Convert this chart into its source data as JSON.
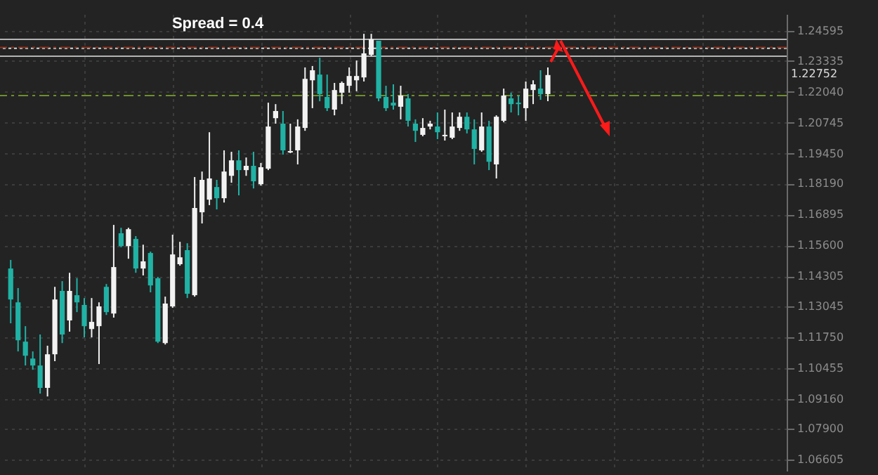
{
  "chart_data": {
    "type": "candlestick",
    "categories": [
      null,
      null,
      null,
      null,
      null,
      null,
      null,
      null,
      null,
      null,
      null,
      null,
      null,
      null,
      null,
      null,
      null,
      null,
      null,
      null,
      null,
      null,
      null,
      null,
      null,
      null,
      null,
      null,
      null,
      null,
      null,
      null,
      null,
      null,
      null,
      null,
      null,
      null,
      null,
      null,
      null,
      null,
      null,
      null,
      null,
      null,
      null,
      null,
      null,
      null,
      null,
      null,
      null,
      null,
      null,
      null,
      null,
      null,
      null,
      null,
      null,
      null,
      null,
      null,
      null,
      null,
      null,
      null,
      null,
      null,
      null,
      null,
      null,
      null,
      null,
      null,
      null,
      null,
      null,
      null,
      null,
      null,
      null,
      null,
      null,
      null,
      null,
      null,
      null,
      null,
      null,
      null,
      null,
      null,
      null,
      null,
      null,
      null,
      null,
      null,
      null,
      null,
      null,
      null,
      null
    ],
    "ohlc": [
      [
        1.1463,
        1.1499,
        1.1233,
        1.1333
      ],
      [
        1.1321,
        1.1381,
        1.1115,
        1.1162
      ],
      [
        1.1156,
        1.1221,
        1.1056,
        1.1097
      ],
      [
        1.1085,
        1.1115,
        1.1038,
        1.1056
      ],
      [
        1.1056,
        1.1186,
        1.0938,
        1.0962
      ],
      [
        1.0962,
        1.1139,
        1.0926,
        1.1103
      ],
      [
        1.1103,
        1.1386,
        1.1074,
        1.1333
      ],
      [
        1.1369,
        1.141,
        1.115,
        1.1186
      ],
      [
        1.1245,
        1.1445,
        1.1198,
        1.1369
      ],
      [
        1.1351,
        1.1422,
        1.128,
        1.1321
      ],
      [
        1.131,
        1.1339,
        1.1174,
        1.1221
      ],
      [
        1.1209,
        1.1339,
        1.1174,
        1.1239
      ],
      [
        1.1221,
        1.1321,
        1.1062,
        1.1304
      ],
      [
        1.1386,
        1.1398,
        1.1268,
        1.128
      ],
      [
        1.1274,
        1.1646,
        1.1257,
        1.1469
      ],
      [
        1.1611,
        1.1634,
        1.1552,
        1.1557
      ],
      [
        1.1557,
        1.1634,
        1.1504,
        1.1628
      ],
      [
        1.1587,
        1.1599,
        1.1445,
        1.1463
      ],
      [
        1.1463,
        1.1563,
        1.1434,
        1.1493
      ],
      [
        1.1528,
        1.1534,
        1.1363,
        1.1392
      ],
      [
        1.1422,
        1.1428,
        1.115,
        1.1156
      ],
      [
        1.115,
        1.1345,
        1.1144,
        1.1316
      ],
      [
        1.1304,
        1.1605,
        1.1298,
        1.1522
      ],
      [
        1.1481,
        1.1575,
        1.1475,
        1.151
      ],
      [
        1.154,
        1.1569,
        1.1339,
        1.1357
      ],
      [
        1.1351,
        1.1847,
        1.1345,
        1.1717
      ],
      [
        1.1699,
        1.187,
        1.1652,
        1.1835
      ],
      [
        1.1752,
        1.2035,
        1.1729,
        1.1841
      ],
      [
        1.1805,
        1.1835,
        1.1711,
        1.1758
      ],
      [
        1.1758,
        1.1959,
        1.174,
        1.187
      ],
      [
        1.1852,
        1.1953,
        1.1823,
        1.1917
      ],
      [
        1.1917,
        1.1959,
        1.177,
        1.1876
      ],
      [
        1.1876,
        1.1929,
        1.1852,
        1.1894
      ],
      [
        1.1894,
        1.1953,
        1.1799,
        1.1829
      ],
      [
        1.1817,
        1.1906,
        1.1811,
        1.1888
      ],
      [
        1.1882,
        1.2159,
        1.1876,
        1.2059
      ],
      [
        1.2094,
        1.2153,
        1.2071,
        1.2124
      ],
      [
        1.2071,
        1.2124,
        1.1941,
        1.1959
      ],
      [
        1.195,
        1.2071,
        1.1947,
        1.1956
      ],
      [
        1.1959,
        1.2089,
        1.19,
        1.2059
      ],
      [
        1.2053,
        1.2307,
        1.2041,
        1.2259
      ],
      [
        1.2253,
        1.2313,
        1.2136,
        1.2295
      ],
      [
        1.2277,
        1.2348,
        1.2165,
        1.2195
      ],
      [
        1.2183,
        1.2277,
        1.2124,
        1.2136
      ],
      [
        1.213,
        1.2242,
        1.2106,
        1.2212
      ],
      [
        1.2201,
        1.2248,
        1.2153,
        1.2242
      ],
      [
        1.223,
        1.2307,
        1.2201,
        1.2271
      ],
      [
        1.2253,
        1.2336,
        1.2207,
        1.2271
      ],
      [
        1.2265,
        1.2448,
        1.2248,
        1.2366
      ],
      [
        1.236,
        1.2448,
        1.2354,
        1.2425
      ],
      [
        1.2419,
        1.2419,
        1.2165,
        1.2177
      ],
      [
        1.2183,
        1.223,
        1.2124,
        1.2136
      ],
      [
        1.2159,
        1.2236,
        1.213,
        1.2147
      ],
      [
        1.2142,
        1.223,
        1.2089,
        1.2189
      ],
      [
        1.2177,
        1.2195,
        1.2059,
        1.2083
      ],
      [
        1.2071,
        1.2089,
        1.1994,
        1.2041
      ],
      [
        1.2024,
        1.2094,
        1.2018,
        1.2053
      ],
      [
        1.2059,
        1.2083,
        1.2047,
        1.2071
      ],
      [
        1.2059,
        1.2118,
        1.2006,
        1.2035
      ],
      [
        1.2018,
        1.213,
        1.2,
        1.2024
      ],
      [
        1.2012,
        1.2118,
        1.2006,
        1.2059
      ],
      [
        1.2053,
        1.2118,
        1.2041,
        1.21
      ],
      [
        1.21,
        1.2118,
        1.203,
        1.2047
      ],
      [
        1.2047,
        1.2089,
        1.19,
        1.1965
      ],
      [
        1.1959,
        1.2118,
        1.1953,
        1.2059
      ],
      [
        1.2059,
        1.2083,
        1.1876,
        1.1911
      ],
      [
        1.19,
        1.2106,
        1.1841,
        1.21
      ],
      [
        1.2083,
        1.2218,
        1.2077,
        1.2189
      ],
      [
        1.2177,
        1.2201,
        1.2118,
        1.2153
      ],
      [
        1.2159,
        1.2189,
        1.2106,
        1.2153
      ],
      [
        1.2136,
        1.2248,
        1.2083,
        1.2218
      ],
      [
        1.2212,
        1.2253,
        1.2153,
        1.2236
      ],
      [
        1.2218,
        1.2295,
        1.2171,
        1.2195
      ],
      [
        1.2195,
        1.2307,
        1.2165,
        1.2275
      ],
      null,
      null,
      null,
      null,
      null,
      null,
      null,
      null,
      null,
      null,
      null,
      null,
      null,
      null,
      null,
      null,
      null,
      null,
      null,
      null,
      null,
      null,
      null,
      null,
      null,
      null,
      null,
      null,
      null,
      null,
      null
    ],
    "colors": [
      "#20b2a5",
      "#20b2a5",
      "#20b2a5",
      "#20b2a5",
      "#20b2a5",
      "#f2f2f2",
      "#f2f2f2",
      "#20b2a5",
      "#f2f2f2",
      "#20b2a5",
      "#20b2a5",
      "#f2f2f2",
      "#f2f2f2",
      "#20b2a5",
      "#f2f2f2",
      "#20b2a5",
      "#f2f2f2",
      "#20b2a5",
      "#f2f2f2",
      "#20b2a5",
      "#20b2a5",
      "#f2f2f2",
      "#f2f2f2",
      "#f2f2f2",
      "#20b2a5",
      "#f2f2f2",
      "#f2f2f2",
      "#f2f2f2",
      "#20b2a5",
      "#f2f2f2",
      "#f2f2f2",
      "#20b2a5",
      "#f2f2f2",
      "#20b2a5",
      "#f2f2f2",
      "#f2f2f2",
      "#f2f2f2",
      "#20b2a5",
      "#f2f2f2",
      "#f2f2f2",
      "#f2f2f2",
      "#f2f2f2",
      "#20b2a5",
      "#20b2a5",
      "#f2f2f2",
      "#f2f2f2",
      "#f2f2f2",
      "#f2f2f2",
      "#f2f2f2",
      "#f2f2f2",
      "#20b2a5",
      "#20b2a5",
      "#20b2a5",
      "#f2f2f2",
      "#20b2a5",
      "#20b2a5",
      "#f2f2f2",
      "#f2f2f2",
      "#20b2a5",
      "#f2f2f2",
      "#f2f2f2",
      "#f2f2f2",
      "#20b2a5",
      "#20b2a5",
      "#f2f2f2",
      "#20b2a5",
      "#f2f2f2",
      "#f2f2f2",
      "#20b2a5",
      "#20b2a5",
      "#f2f2f2",
      "#f2f2f2",
      "#20b2a5",
      "#f2f2f2",
      null,
      null,
      null,
      null,
      null,
      null,
      null,
      null,
      null,
      null,
      null,
      null,
      null,
      null,
      null,
      null,
      null,
      null,
      null,
      null,
      null,
      null,
      null,
      null,
      null,
      null,
      null,
      null,
      null,
      null,
      null
    ],
    "ylim": [
      1.0614,
      1.2531
    ],
    "yticks": [
      1.24595,
      1.23335,
      {
        "value": 1.2204,
        "label": "1.22040"
      },
      1.20745,
      {
        "value": 1.1945,
        "label": "1.19450"
      },
      {
        "value": 1.1819,
        "label": "1.18190"
      },
      1.16895,
      {
        "value": 1.156,
        "label": "1.15600"
      },
      1.14305,
      1.13045,
      {
        "value": 1.1175,
        "label": "1.11750"
      },
      1.10455,
      {
        "value": 1.0916,
        "label": "1.09160"
      },
      {
        "value": 1.079,
        "label": "1.07900"
      },
      1.06605
    ],
    "grid": true,
    "ref_lines": [
      {
        "axis": "y",
        "value": 1.2425,
        "color": "#b4b4b4",
        "line_style": "solid"
      },
      {
        "axis": "y",
        "value": 1.2354,
        "color": "#b4b4b4",
        "line_style": "solid"
      },
      {
        "axis": "y",
        "value": 1.2391,
        "color": "#8b3320",
        "line_style": "dashed"
      },
      {
        "axis": "y",
        "value": 1.2387,
        "color": "#d8d8d8",
        "line_style": "dotted"
      },
      {
        "axis": "y",
        "value": 1.2189,
        "color": "#6e8f2a",
        "line_style": "dashed"
      }
    ],
    "annotations": [
      "Spread = 0.4",
      "1.22752"
    ]
  }
}
